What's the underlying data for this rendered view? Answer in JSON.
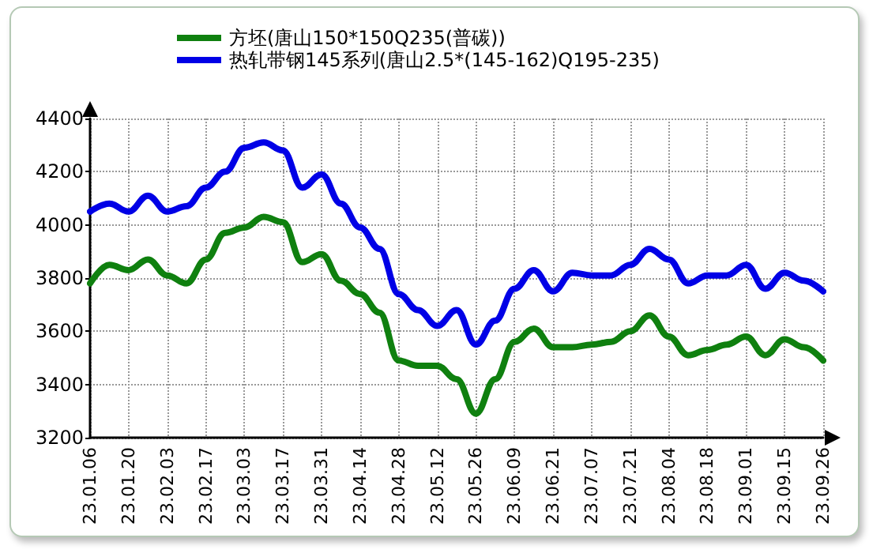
{
  "chart_data": {
    "type": "line",
    "categories": [
      "23.01.06",
      null,
      "23.01.20",
      null,
      "23.02.03",
      null,
      "23.02.17",
      null,
      "23.03.03",
      null,
      "23.03.17",
      null,
      "23.03.31",
      null,
      "23.04.14",
      null,
      "23.04.28",
      null,
      "23.05.12",
      null,
      "23.05.26",
      null,
      "23.06.09",
      null,
      "23.06.21",
      null,
      "23.07.07",
      null,
      "23.07.21",
      null,
      "23.08.04",
      null,
      "23.08.18",
      null,
      "23.09.01",
      null,
      "23.09.15",
      null,
      "23.09.26"
    ],
    "series": [
      {
        "name": "方坯(唐山150*150Q235(普碳))",
        "color": "#0f800f",
        "values": [
          3780,
          3850,
          3830,
          3870,
          3810,
          3780,
          3870,
          3970,
          3990,
          4030,
          4010,
          3860,
          3890,
          3790,
          3740,
          3670,
          3490,
          3470,
          3470,
          3420,
          3290,
          3420,
          3560,
          3610,
          3540,
          3540,
          3550,
          3560,
          3600,
          3660,
          3580,
          3510,
          3530,
          3550,
          3580,
          3510,
          3570,
          3540,
          3490
        ]
      },
      {
        "name": "热轧带钢145系列(唐山2.5*(145-162)Q195-235)",
        "color": "#0000e6",
        "values": [
          4050,
          4080,
          4050,
          4110,
          4050,
          4070,
          4140,
          4200,
          4290,
          4310,
          4280,
          4140,
          4190,
          4080,
          3990,
          3910,
          3740,
          3680,
          3620,
          3680,
          3550,
          3640,
          3760,
          3830,
          3750,
          3820,
          3810,
          3810,
          3850,
          3910,
          3870,
          3780,
          3810,
          3810,
          3850,
          3760,
          3820,
          3790,
          3750
        ]
      }
    ],
    "ylim": [
      3200,
      4400
    ],
    "yticks": [
      3200,
      3400,
      3600,
      3800,
      4000,
      4200,
      4400
    ],
    "grid": true,
    "legend": "top",
    "marker": "none",
    "line_style": "solid"
  }
}
